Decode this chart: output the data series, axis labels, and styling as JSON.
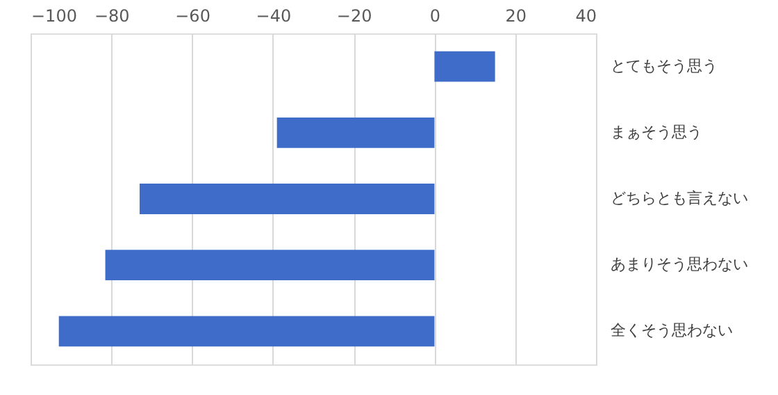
{
  "chart_data": {
    "type": "bar",
    "orientation": "horizontal",
    "categories": [
      "とてもそう思う",
      "まぁそう思う",
      "どちらとも言えない",
      "あまりそう思わない",
      "全くそう思わない"
    ],
    "values": [
      15,
      -39,
      -73,
      -81.5,
      -93
    ],
    "color": "#3f6cc8",
    "xlim": [
      -100,
      40
    ],
    "xticks": [
      -100,
      -80,
      -60,
      -40,
      -20,
      0,
      20,
      40
    ],
    "grid": "x"
  }
}
